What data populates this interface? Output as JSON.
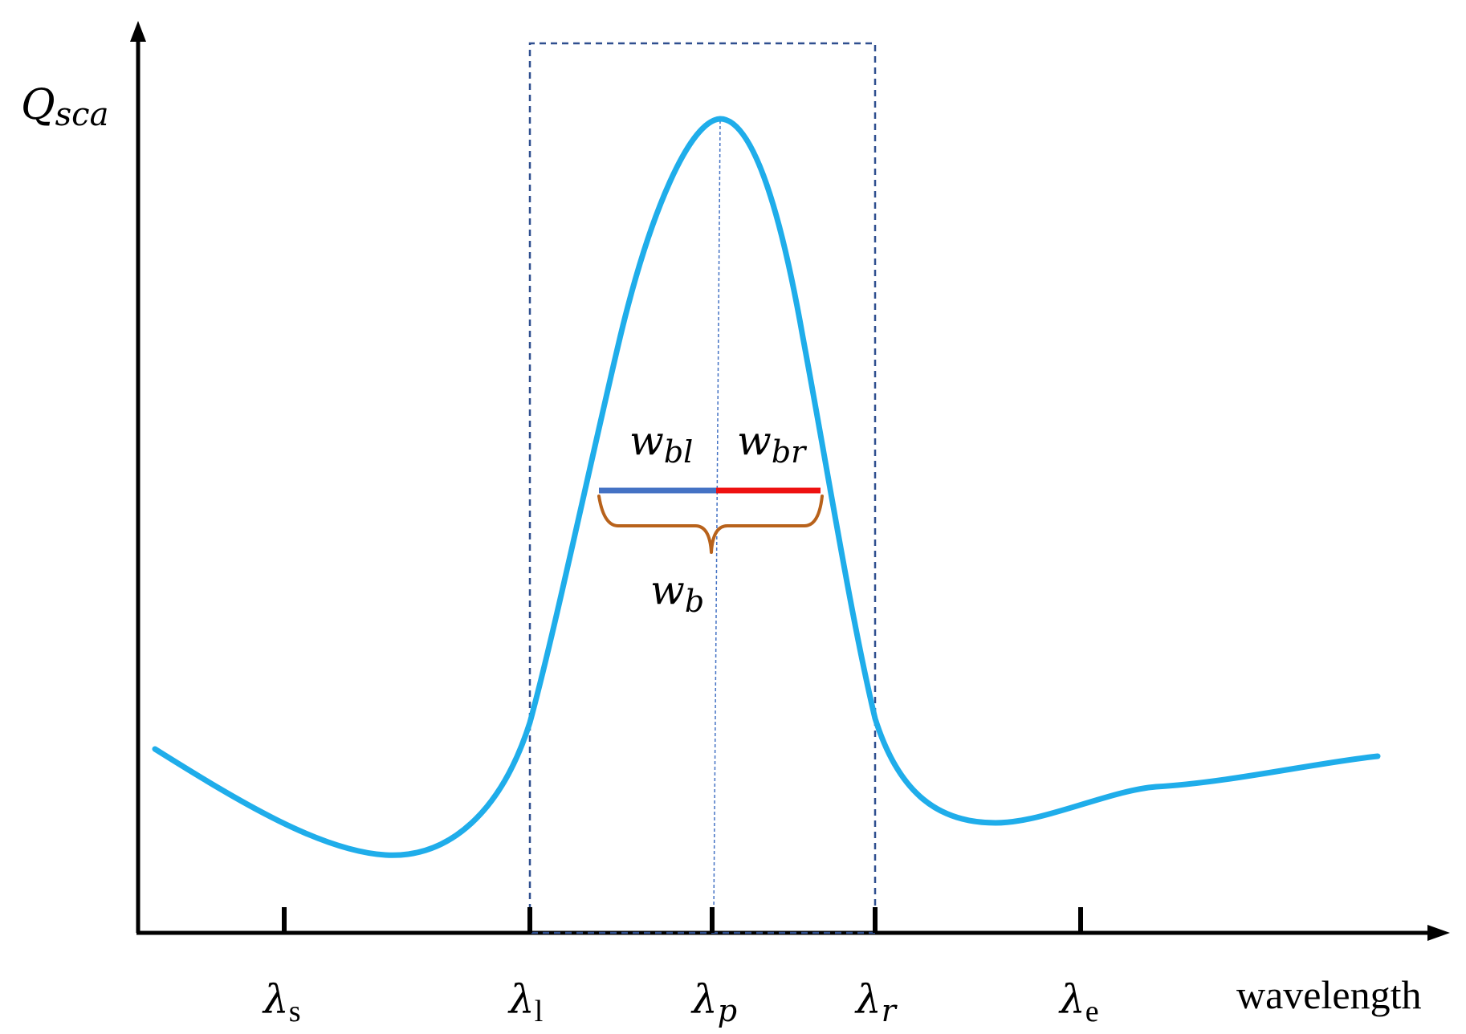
{
  "axes": {
    "y_label_main": "Q",
    "y_label_sub": "sca",
    "x_label": "wavelength"
  },
  "ticks": [
    {
      "id": "s",
      "main": "λ",
      "sub": "s",
      "sub_italic": false
    },
    {
      "id": "l",
      "main": "λ",
      "sub": "l",
      "sub_italic": false
    },
    {
      "id": "p",
      "main": "λ",
      "sub": "p",
      "sub_italic": true
    },
    {
      "id": "r",
      "main": "λ",
      "sub": "r",
      "sub_italic": true
    },
    {
      "id": "e",
      "main": "λ",
      "sub": "e",
      "sub_italic": false
    }
  ],
  "widths": {
    "wbl": {
      "main": "w",
      "sub": "bl"
    },
    "wbr": {
      "main": "w",
      "sub": "br"
    },
    "wb": {
      "main": "w",
      "sub": "b"
    }
  },
  "colors": {
    "curve": "#1fadea",
    "box": "#2f4f8f",
    "left_half_width": "#4472c4",
    "right_half_width": "#ee1111",
    "brace": "#b8621b",
    "axis": "#000000"
  }
}
